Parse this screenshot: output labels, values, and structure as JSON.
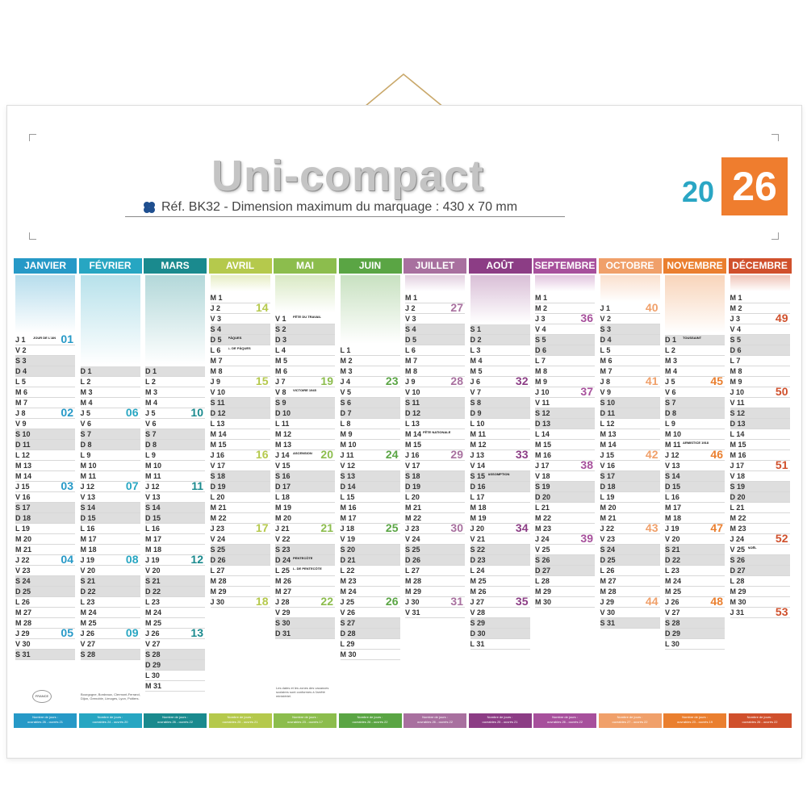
{
  "title": "Uni-compact",
  "reference": "Réf. BK32 - Dimension maximum du marquage : 430 x 70 mm",
  "year": {
    "prefix": "20",
    "suffix": "26"
  },
  "colors": {
    "accent": "#ef7d2e",
    "year_prefix": "#2aa6c4",
    "weekend": "#dedede"
  },
  "icons": {
    "clover": "clover-icon",
    "hanger": "hanging-string-icon"
  },
  "months": [
    {
      "name": "JANVIER",
      "color": "#2699c7",
      "offset": 4,
      "start": 3,
      "days": 31,
      "holidays": {
        "1": "JOUR DE L'AN"
      },
      "weeks": [
        "01",
        "02",
        "03",
        "04",
        "05"
      ],
      "footer": [
        "Nombre de jours :",
        "ouvrables 26 - ouvrés 21"
      ]
    },
    {
      "name": "FÉVRIER",
      "color": "#27a6c2",
      "offset": 7,
      "start": 6,
      "days": 28,
      "holidays": {},
      "weeks": [
        "06",
        "07",
        "08",
        "09"
      ],
      "footer": [
        "Nombre de jours :",
        "ouvrables 24 - ouvrés 20"
      ]
    },
    {
      "name": "MARS",
      "color": "#1a8a8e",
      "offset": 7,
      "start": 6,
      "days": 31,
      "holidays": {},
      "weeks": [
        "10",
        "11",
        "12",
        "13"
      ],
      "footer": [
        "Nombre de jours :",
        "ouvrables 26 - ouvrés 22"
      ]
    },
    {
      "name": "AVRIL",
      "color": "#b5c94c",
      "offset": 0,
      "start": 2,
      "days": 30,
      "holidays": {
        "5": "PÂQUES",
        "6": "L. DE PÂQUES"
      },
      "weeks": [
        "14",
        "15",
        "16",
        "17",
        "18"
      ],
      "footer": [
        "Nombre de jours :",
        "ouvrables 25 - ouvrés 21"
      ]
    },
    {
      "name": "MAI",
      "color": "#8cbd4d",
      "offset": 2,
      "start": 4,
      "days": 31,
      "holidays": {
        "1": "FÊTE DU TRAVAIL",
        "8": "VICTOIRE 1945",
        "14": "ASCENSION",
        "24": "PENTECÔTE",
        "25": "L. DE PENTECÔTE"
      },
      "weeks": [
        "19",
        "20",
        "21",
        "22"
      ],
      "footer": [
        "Nombre de jours :",
        "ouvrables 23 - ouvrés 17"
      ]
    },
    {
      "name": "JUIN",
      "color": "#5aa544",
      "offset": 5,
      "start": 0,
      "days": 30,
      "holidays": {},
      "weeks": [
        "23",
        "24",
        "25",
        "26"
      ],
      "footer": [
        "Nombre de jours :",
        "ouvrables 26 - ouvrés 22"
      ]
    },
    {
      "name": "JUILLET",
      "color": "#a8709f",
      "offset": 0,
      "start": 2,
      "days": 31,
      "holidays": {
        "14": "FÊTE NATIONALE"
      },
      "weeks": [
        "27",
        "28",
        "29",
        "30",
        "31"
      ],
      "footer": [
        "Nombre de jours :",
        "ouvrables 26 - ouvrés 22"
      ]
    },
    {
      "name": "AOÛT",
      "color": "#8c3d85",
      "offset": 3,
      "start": 5,
      "days": 31,
      "holidays": {
        "15": "ASSOMPTION"
      },
      "weeks": [
        "32",
        "33",
        "34",
        "35"
      ],
      "footer": [
        "Nombre de jours :",
        "ouvrables 25 - ouvrés 21"
      ]
    },
    {
      "name": "SEPTEMBRE",
      "color": "#a7509c",
      "offset": 0,
      "start": 1,
      "days": 30,
      "holidays": {},
      "weeks": [
        "36",
        "37",
        "38",
        "39"
      ],
      "footer": [
        "Nombre de jours :",
        "ouvrables 26 - ouvrés 22"
      ]
    },
    {
      "name": "OCTOBRE",
      "color": "#f0a06a",
      "offset": 1,
      "start": 3,
      "days": 31,
      "holidays": {},
      "weeks": [
        "40",
        "41",
        "42",
        "43",
        "44"
      ],
      "footer": [
        "Nombre de jours :",
        "ouvrables 27 - ouvrés 22"
      ]
    },
    {
      "name": "NOVEMBRE",
      "color": "#ea7f2f",
      "offset": 4,
      "start": 6,
      "days": 30,
      "holidays": {
        "1": "TOUSSAINT",
        "11": "ARMISTICE 1918"
      },
      "weeks": [
        "45",
        "46",
        "47",
        "48"
      ],
      "footer": [
        "Nombre de jours :",
        "ouvrables 23 - ouvrés 19"
      ]
    },
    {
      "name": "DÉCEMBRE",
      "color": "#d0502c",
      "offset": 0,
      "start": 1,
      "days": 31,
      "holidays": {
        "25": "NOËL"
      },
      "weeks": [
        "49",
        "50",
        "51",
        "52",
        "53"
      ],
      "footer": [
        "Nombre de jours :",
        "ouvrables 26 - ouvrés 22"
      ]
    }
  ],
  "weekday_letters": [
    "L",
    "M",
    "M",
    "J",
    "V",
    "S",
    "D"
  ],
  "notes": {
    "feb": "Bourgogne, Bordeaux, Clermont-Ferrand, Dijon, Grenoble, Limoges, Lyon, Poitiers.",
    "may": "Les dates et les zones des vacances scolaires sont conformes à l'arrêté ministériel.",
    "logo": "FRANCE"
  }
}
